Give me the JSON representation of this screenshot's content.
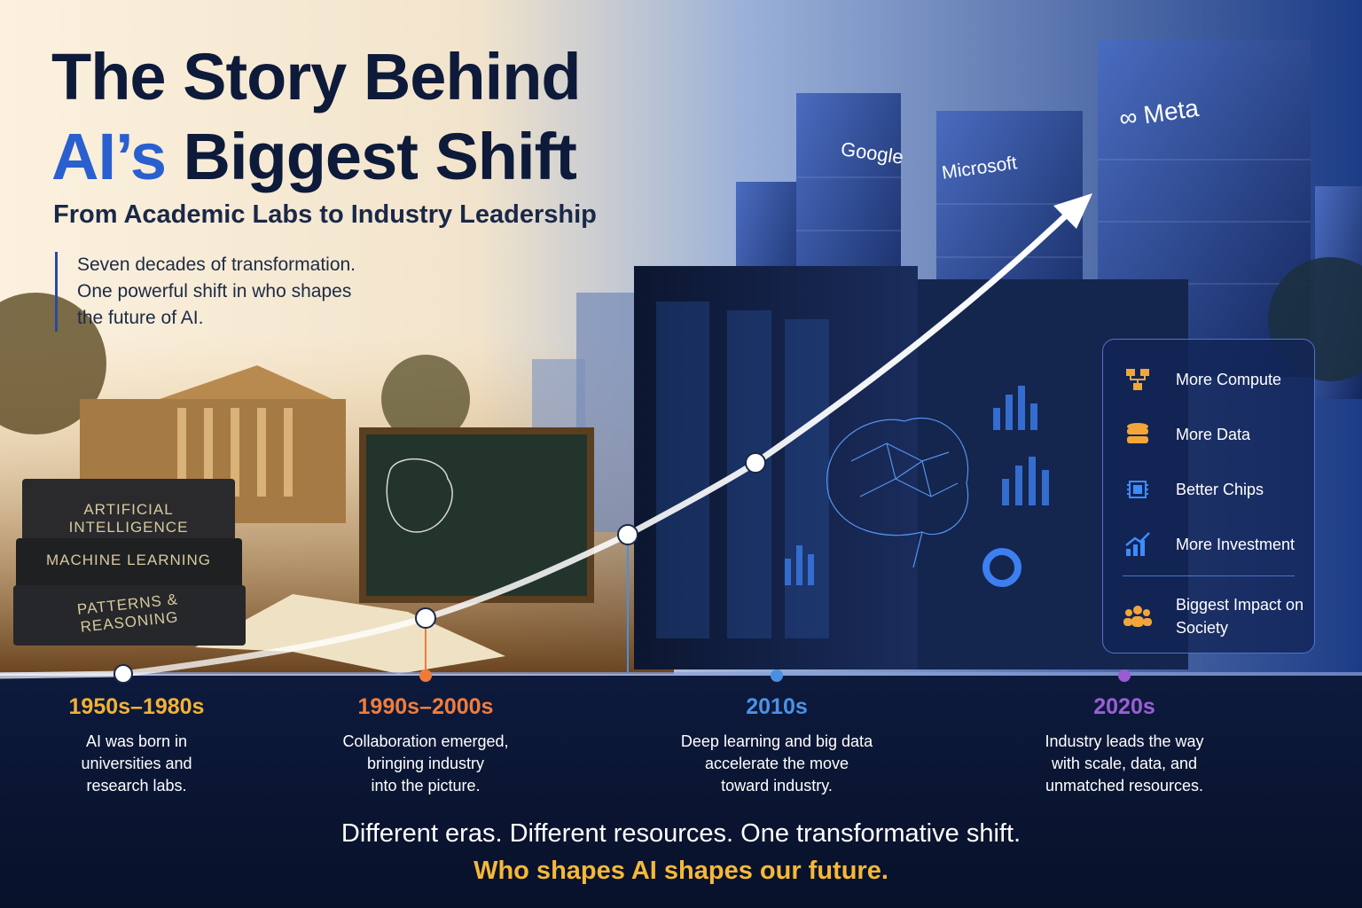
{
  "header": {
    "title_line1": "The Story Behind",
    "title_line2_highlight": "AI’s",
    "title_line2_rest": "Biggest Shift",
    "subtitle": "From Academic Labs to Industry Leadership",
    "intro": [
      "Seven decades of transformation.",
      "One powerful shift in who shapes",
      "the future of AI."
    ]
  },
  "buildings": [
    "Google",
    "Microsoft",
    "∞ Meta"
  ],
  "books": [
    "ARTIFICIAL INTELLIGENCE",
    "MACHINE LEARNING",
    "PATTERNS & REASONING"
  ],
  "factors": [
    "More Compute",
    "More Data",
    "Better Chips",
    "More Investment",
    "Biggest Impact on Society"
  ],
  "eras": [
    {
      "label": "1950s–1980s",
      "color": "#f2b233",
      "description": [
        "AI was born in",
        "universities and",
        "research labs."
      ]
    },
    {
      "label": "1990s–2000s",
      "color": "#f07d3c",
      "description": [
        "Collaboration emerged,",
        "bringing industry",
        "into the picture."
      ]
    },
    {
      "label": "2010s",
      "color": "#4a92e6",
      "description": [
        "Deep learning and big data",
        "accelerate the move",
        "toward industry."
      ]
    },
    {
      "label": "2020s",
      "color": "#9c5ed6",
      "description": [
        "Industry leads the way",
        "with scale, data, and",
        "unmatched resources."
      ]
    }
  ],
  "footer": {
    "line1": "Different eras. Different resources. One transformative shift.",
    "line2": "Who shapes AI shapes our future."
  }
}
